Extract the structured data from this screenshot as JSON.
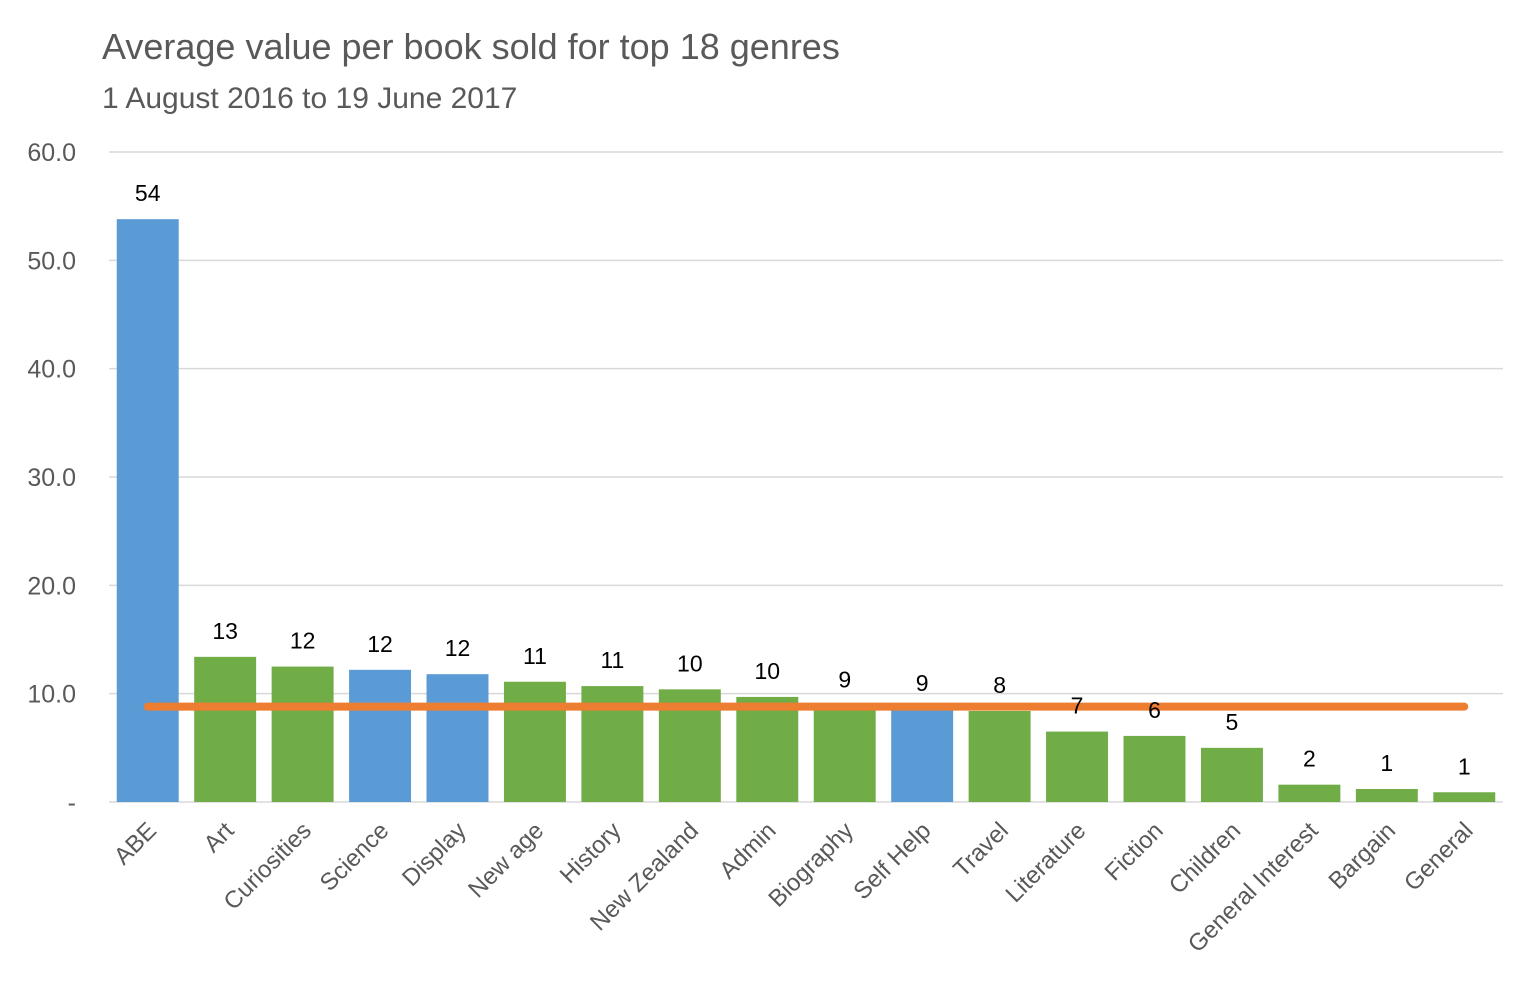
{
  "chart_data": {
    "type": "bar",
    "title": "Average value per book sold for top 18 genres",
    "subtitle": "1 August 2016 to 19 June 2017",
    "xlabel": "",
    "ylabel": "",
    "ylim": [
      0,
      60
    ],
    "yticks": [
      0,
      10,
      20,
      30,
      40,
      50,
      60
    ],
    "ytick_labels": [
      "-",
      "10.0",
      "20.0",
      "30.0",
      "40.0",
      "50.0",
      "60.0"
    ],
    "grid": true,
    "categories": [
      "ABE",
      "Art",
      "Curiosities",
      "Science",
      "Display",
      "New age",
      "History",
      "New Zealand",
      "Admin",
      "Biography",
      "Self Help",
      "Travel",
      "Literature",
      "Fiction",
      "Children",
      "General Interest",
      "Bargain",
      "General"
    ],
    "values": [
      53.8,
      13.4,
      12.5,
      12.2,
      11.8,
      11.1,
      10.7,
      10.4,
      9.7,
      8.9,
      8.6,
      8.4,
      6.5,
      6.1,
      5.0,
      1.6,
      1.2,
      0.9
    ],
    "data_labels": [
      "54",
      "13",
      "12",
      "12",
      "12",
      "11",
      "11",
      "10",
      "10",
      "9",
      "9",
      "8",
      "7",
      "6",
      "5",
      "2",
      "1",
      "1"
    ],
    "bar_colors": [
      "#5b9bd5",
      "#70ad47",
      "#70ad47",
      "#5b9bd5",
      "#5b9bd5",
      "#70ad47",
      "#70ad47",
      "#70ad47",
      "#70ad47",
      "#70ad47",
      "#5b9bd5",
      "#70ad47",
      "#70ad47",
      "#70ad47",
      "#70ad47",
      "#70ad47",
      "#70ad47",
      "#70ad47"
    ],
    "reference_line": {
      "value": 8.8,
      "color": "#ed7d31"
    },
    "colors": {
      "blue": "#5b9bd5",
      "green": "#70ad47",
      "orange": "#ed7d31",
      "grid": "#d9d9d9",
      "text": "#595959"
    }
  }
}
